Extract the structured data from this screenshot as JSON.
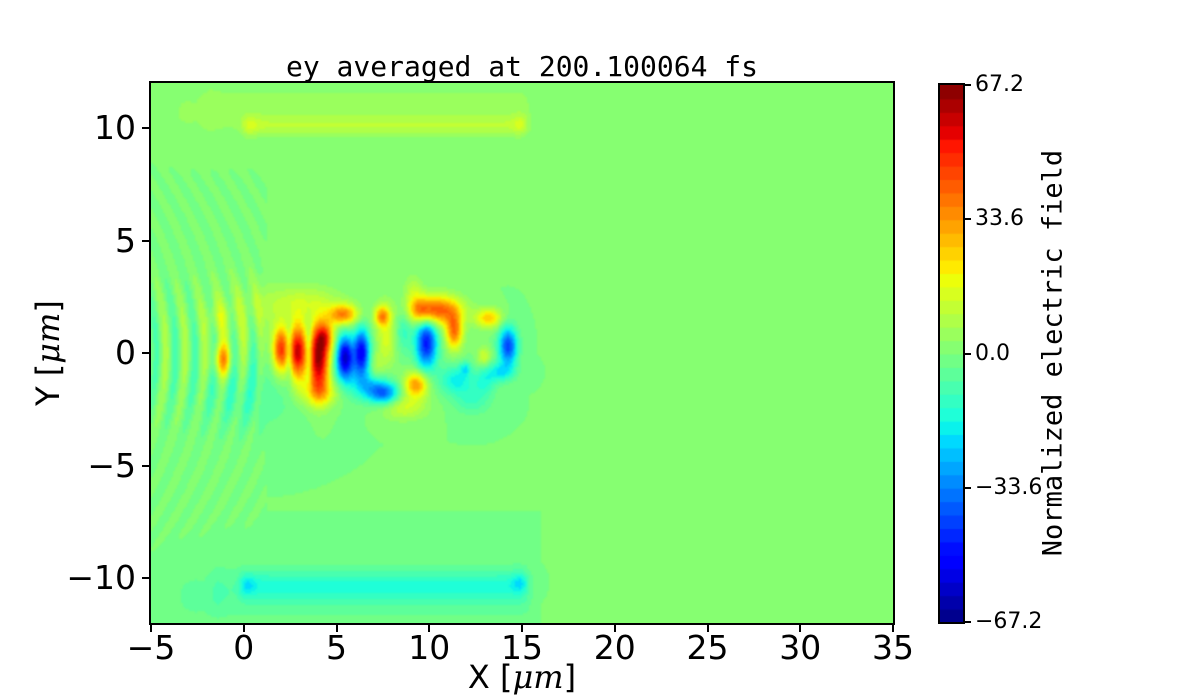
{
  "chart_data": {
    "type": "heatmap",
    "title": "ey_averaged at 200.100064 fs",
    "xlabel": "X [μm]",
    "ylabel": "Y [μm]",
    "colorbar_label": "Normalized electric field",
    "colormap": "jet",
    "n_levels": 40,
    "xlim": [
      -5,
      35
    ],
    "ylim": [
      -12,
      12
    ],
    "clim": [
      -67.2,
      67.2
    ],
    "x_ticks": [
      {
        "v": -5,
        "label": "−5"
      },
      {
        "v": 0,
        "label": "0"
      },
      {
        "v": 5,
        "label": "5"
      },
      {
        "v": 10,
        "label": "10"
      },
      {
        "v": 15,
        "label": "15"
      },
      {
        "v": 20,
        "label": "20"
      },
      {
        "v": 25,
        "label": "25"
      },
      {
        "v": 30,
        "label": "30"
      },
      {
        "v": 35,
        "label": "35"
      }
    ],
    "y_ticks": [
      {
        "v": 10,
        "label": "10"
      },
      {
        "v": 5,
        "label": "5"
      },
      {
        "v": 0,
        "label": "0"
      },
      {
        "v": -5,
        "label": "−5"
      },
      {
        "v": -10,
        "label": "−10"
      }
    ],
    "colorbar_ticks": [
      {
        "v": 67.2,
        "label": "67.2"
      },
      {
        "v": 33.6,
        "label": "33.6"
      },
      {
        "v": 0,
        "label": "0.0"
      },
      {
        "v": -33.6,
        "label": "−33.6"
      },
      {
        "v": -67.2,
        "label": "−67.2"
      }
    ],
    "field": {
      "background_value": 0,
      "striations": {
        "x0": -5.4,
        "x1": 1.25,
        "wavelength": 1.05,
        "curvature": 0.05,
        "amp": 9,
        "sigma_y": 2.4,
        "edge": 0.6
      },
      "boundary_bands": [
        {
          "y": 10.8,
          "sy": 0.8,
          "amp": 5,
          "x0": -2.6,
          "x1": 15.9,
          "edge": 0.8
        },
        {
          "y": 10.1,
          "sy": 0.3,
          "amp": 7,
          "x0": -0.2,
          "x1": 15.3,
          "edge": 0.5
        },
        {
          "y": -10.6,
          "sy": 0.9,
          "amp": -6,
          "x0": -2.2,
          "x1": 16.0,
          "edge": 0.8
        },
        {
          "y": -10.35,
          "sy": 0.45,
          "amp": -9,
          "x0": -0.4,
          "x1": 15.4,
          "edge": 0.5
        }
      ],
      "blobs": [
        [
          -1.15,
          -0.3,
          0.32,
          0.5,
          30
        ],
        [
          -1.35,
          1.5,
          0.4,
          0.5,
          8
        ],
        [
          2.0,
          0.15,
          0.3,
          0.7,
          46
        ],
        [
          2.45,
          0.1,
          0.14,
          0.8,
          -16
        ],
        [
          2.9,
          0.05,
          0.34,
          0.85,
          58
        ],
        [
          3.5,
          0.0,
          0.14,
          0.9,
          -18
        ],
        [
          4.05,
          -0.3,
          0.42,
          1.0,
          66
        ],
        [
          4.35,
          0.75,
          0.35,
          0.45,
          30
        ],
        [
          4.1,
          -1.75,
          0.75,
          0.45,
          20
        ],
        [
          3.3,
          2.2,
          1.4,
          0.55,
          12
        ],
        [
          5.35,
          1.7,
          0.55,
          0.32,
          36
        ],
        [
          7.45,
          1.65,
          0.28,
          0.3,
          30
        ],
        [
          5.45,
          -0.15,
          0.3,
          0.65,
          -50
        ],
        [
          6.35,
          0.1,
          0.3,
          0.7,
          -46
        ],
        [
          5.9,
          -0.8,
          1.0,
          0.8,
          -14
        ],
        [
          6.8,
          -1.5,
          0.6,
          0.4,
          -16
        ],
        [
          7.7,
          0.7,
          0.4,
          1.0,
          16
        ],
        [
          7.1,
          -0.6,
          0.3,
          0.45,
          12
        ],
        [
          8.6,
          1.0,
          0.35,
          0.7,
          -12
        ],
        [
          9.3,
          -1.4,
          0.45,
          0.4,
          34
        ],
        [
          8.6,
          -2.4,
          0.9,
          0.4,
          14
        ],
        [
          7.6,
          -1.8,
          0.55,
          0.35,
          -34
        ],
        [
          9.85,
          0.45,
          0.4,
          0.8,
          -48
        ],
        [
          10.4,
          1.9,
          0.9,
          0.45,
          44
        ],
        [
          9.5,
          1.9,
          0.4,
          0.4,
          18
        ],
        [
          11.35,
          0.95,
          0.32,
          0.55,
          38
        ],
        [
          13.2,
          1.55,
          0.5,
          0.3,
          26
        ],
        [
          12.95,
          -0.15,
          0.25,
          0.3,
          14
        ],
        [
          14.25,
          0.3,
          0.35,
          0.6,
          -42
        ],
        [
          13.8,
          -0.85,
          0.55,
          0.3,
          -18
        ],
        [
          13.0,
          -1.3,
          0.4,
          0.4,
          -12
        ],
        [
          11.45,
          -1.2,
          0.65,
          0.45,
          -18
        ],
        [
          11.95,
          -0.7,
          0.2,
          0.22,
          -14
        ],
        [
          12.3,
          -2.1,
          0.7,
          0.45,
          -10
        ],
        [
          9.15,
          2.75,
          0.35,
          0.5,
          10
        ],
        [
          0.3,
          1.8,
          1.6,
          1.0,
          6
        ],
        [
          0.3,
          -2.0,
          1.8,
          1.0,
          -7
        ],
        [
          0.3,
          10.1,
          0.35,
          0.3,
          6
        ],
        [
          15.0,
          10.15,
          0.3,
          0.3,
          7
        ],
        [
          -3.0,
          10.7,
          0.9,
          0.8,
          4
        ],
        [
          0.2,
          -10.3,
          0.35,
          0.3,
          -7
        ],
        [
          14.9,
          -10.2,
          0.35,
          0.3,
          -8
        ],
        [
          -2.6,
          -10.8,
          0.9,
          0.8,
          -5
        ]
      ]
    }
  }
}
